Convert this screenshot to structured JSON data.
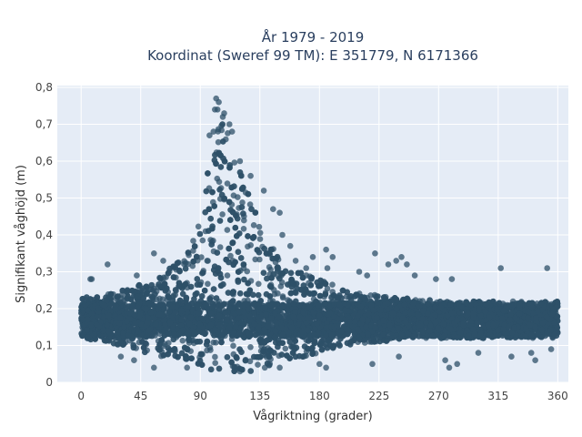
{
  "chart_data": {
    "type": "scatter",
    "title_line1": "År 1979 - 2019",
    "title_line2": "Koordinat (Sweref 99 TM): E 351779, N 6171366",
    "xlabel": "Vågriktning (grader)",
    "ylabel": "Signifikant våghöjd (m)",
    "xlim": [
      -18,
      368
    ],
    "ylim": [
      0,
      0.805
    ],
    "xticks": [
      0,
      45,
      90,
      135,
      180,
      225,
      270,
      315,
      360
    ],
    "xtick_labels": [
      "0",
      "45",
      "90",
      "135",
      "180",
      "225",
      "270",
      "315",
      "360"
    ],
    "yticks": [
      0,
      0.1,
      0.2,
      0.3,
      0.4,
      0.5,
      0.6,
      0.7,
      0.8
    ],
    "ytick_labels": [
      "0",
      "0,1",
      "0,2",
      "0,3",
      "0,4",
      "0,5",
      "0,6",
      "0,7",
      "0,8"
    ],
    "grid": true,
    "marker_color": "#2d5068",
    "plot_bg": "#e5ecf6",
    "envelope": {
      "x": [
        0,
        20,
        40,
        60,
        80,
        90,
        95,
        100,
        105,
        110,
        115,
        125,
        135,
        145,
        155,
        165,
        180,
        200,
        225,
        250,
        270,
        300,
        330,
        360
      ],
      "y_max": [
        0.23,
        0.24,
        0.26,
        0.29,
        0.36,
        0.44,
        0.56,
        0.66,
        0.72,
        0.7,
        0.62,
        0.53,
        0.43,
        0.37,
        0.32,
        0.3,
        0.28,
        0.25,
        0.24,
        0.23,
        0.22,
        0.22,
        0.22,
        0.22
      ],
      "y_min": [
        0.12,
        0.11,
        0.09,
        0.07,
        0.05,
        0.04,
        0.04,
        0.03,
        0.03,
        0.03,
        0.03,
        0.03,
        0.03,
        0.04,
        0.05,
        0.06,
        0.08,
        0.1,
        0.11,
        0.12,
        0.12,
        0.12,
        0.12,
        0.12
      ]
    },
    "outliers": [
      {
        "x": 3,
        "y": 0.21
      },
      {
        "x": 5,
        "y": 0.17
      },
      {
        "x": 7,
        "y": 0.28
      },
      {
        "x": 8,
        "y": 0.28
      },
      {
        "x": 20,
        "y": 0.32
      },
      {
        "x": 30,
        "y": 0.07
      },
      {
        "x": 40,
        "y": 0.06
      },
      {
        "x": 42,
        "y": 0.29
      },
      {
        "x": 55,
        "y": 0.35
      },
      {
        "x": 60,
        "y": 0.28
      },
      {
        "x": 62,
        "y": 0.33
      },
      {
        "x": 102,
        "y": 0.77
      },
      {
        "x": 104,
        "y": 0.76
      },
      {
        "x": 103,
        "y": 0.74
      },
      {
        "x": 101,
        "y": 0.74
      },
      {
        "x": 108,
        "y": 0.73
      },
      {
        "x": 107,
        "y": 0.72
      },
      {
        "x": 100,
        "y": 0.68
      },
      {
        "x": 97,
        "y": 0.67
      },
      {
        "x": 112,
        "y": 0.7
      },
      {
        "x": 114,
        "y": 0.68
      },
      {
        "x": 120,
        "y": 0.6
      },
      {
        "x": 128,
        "y": 0.56
      },
      {
        "x": 138,
        "y": 0.52
      },
      {
        "x": 145,
        "y": 0.47
      },
      {
        "x": 150,
        "y": 0.46
      },
      {
        "x": 152,
        "y": 0.4
      },
      {
        "x": 158,
        "y": 0.37
      },
      {
        "x": 162,
        "y": 0.33
      },
      {
        "x": 170,
        "y": 0.31
      },
      {
        "x": 175,
        "y": 0.34
      },
      {
        "x": 185,
        "y": 0.36
      },
      {
        "x": 190,
        "y": 0.34
      },
      {
        "x": 186,
        "y": 0.31
      },
      {
        "x": 210,
        "y": 0.3
      },
      {
        "x": 216,
        "y": 0.29
      },
      {
        "x": 222,
        "y": 0.35
      },
      {
        "x": 232,
        "y": 0.32
      },
      {
        "x": 238,
        "y": 0.33
      },
      {
        "x": 242,
        "y": 0.34
      },
      {
        "x": 246,
        "y": 0.32
      },
      {
        "x": 252,
        "y": 0.29
      },
      {
        "x": 268,
        "y": 0.28
      },
      {
        "x": 280,
        "y": 0.28
      },
      {
        "x": 317,
        "y": 0.31
      },
      {
        "x": 352,
        "y": 0.31
      },
      {
        "x": 55,
        "y": 0.04
      },
      {
        "x": 80,
        "y": 0.04
      },
      {
        "x": 120,
        "y": 0.03
      },
      {
        "x": 150,
        "y": 0.04
      },
      {
        "x": 180,
        "y": 0.05
      },
      {
        "x": 185,
        "y": 0.04
      },
      {
        "x": 220,
        "y": 0.05
      },
      {
        "x": 240,
        "y": 0.07
      },
      {
        "x": 275,
        "y": 0.06
      },
      {
        "x": 284,
        "y": 0.05
      },
      {
        "x": 278,
        "y": 0.04
      },
      {
        "x": 300,
        "y": 0.08
      },
      {
        "x": 325,
        "y": 0.07
      },
      {
        "x": 340,
        "y": 0.08
      },
      {
        "x": 343,
        "y": 0.06
      },
      {
        "x": 355,
        "y": 0.09
      }
    ]
  }
}
